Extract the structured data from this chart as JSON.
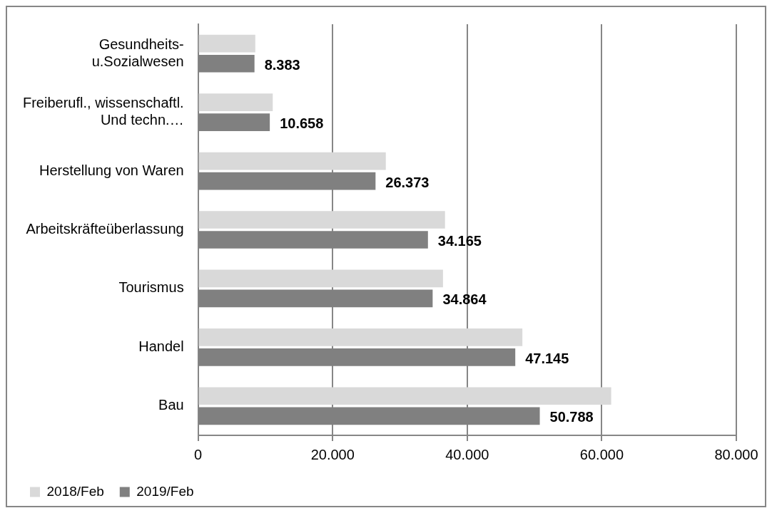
{
  "chart_data": {
    "type": "bar",
    "orientation": "horizontal",
    "categories": [
      "Gesundheits-\nu.Sozialwesen",
      "Freiberufl., wissenschaftl.\nUnd techn.…",
      "Herstellung von Waren",
      "Arbeitskräfteüberlassung",
      "Tourismus",
      "Handel",
      "Bau"
    ],
    "series": [
      {
        "name": "2018/Feb",
        "color": "#d9d9d9",
        "values": [
          8500,
          11100,
          27900,
          36700,
          36400,
          48200,
          61400
        ]
      },
      {
        "name": "2019/Feb",
        "color": "#808080",
        "values": [
          8383,
          10658,
          26373,
          34165,
          34864,
          47145,
          50788
        ],
        "value_labels": [
          "8.383",
          "10.658",
          "26.373",
          "34.165",
          "34.864",
          "47.145",
          "50.788"
        ]
      }
    ],
    "xlim": [
      0,
      80000
    ],
    "xticks": [
      {
        "value": 0,
        "label": "0"
      },
      {
        "value": 20000,
        "label": "20.000"
      },
      {
        "value": 40000,
        "label": "40.000"
      },
      {
        "value": 60000,
        "label": "60.000"
      },
      {
        "value": 80000,
        "label": "80.000"
      }
    ],
    "grid": "x",
    "legend": "bottom left"
  }
}
